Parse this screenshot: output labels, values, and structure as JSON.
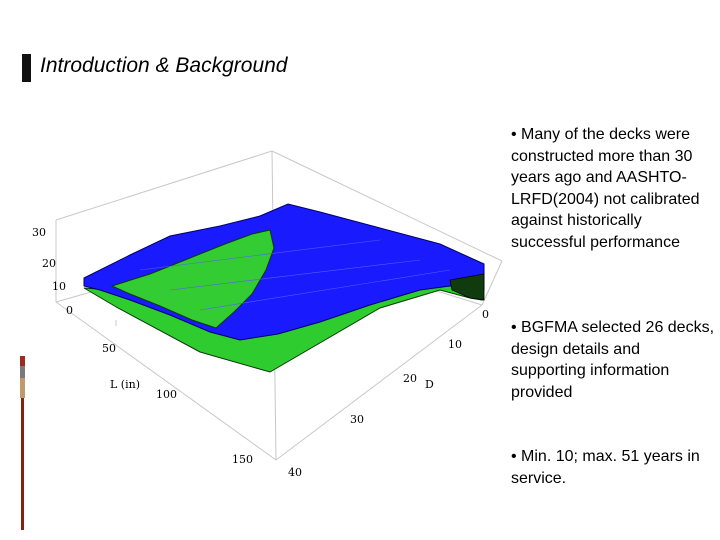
{
  "slide": {
    "title": "Introduction & Background",
    "bullets": [
      "• Many of the decks were constructed more than 30 years ago and AASHTO-LRFD(2004) not calibrated against historically successful performance",
      "• BGFMA selected 26 decks, design details and supporting information provided",
      "• Min. 10; max. 51  years in service."
    ]
  },
  "plot3d": {
    "vertical_ticks": [
      "30",
      "20",
      "10",
      "0"
    ],
    "l_axis_label": "L (in)",
    "l_ticks": [
      "50",
      "100",
      "150"
    ],
    "d_axis_label": "D",
    "d_ticks": [
      "0",
      "10",
      "20",
      "30",
      "40"
    ],
    "colors": {
      "blue_surface": "#1a1aff",
      "green_surface": "#33cc33",
      "box_lines": "#c8c8c8"
    }
  }
}
